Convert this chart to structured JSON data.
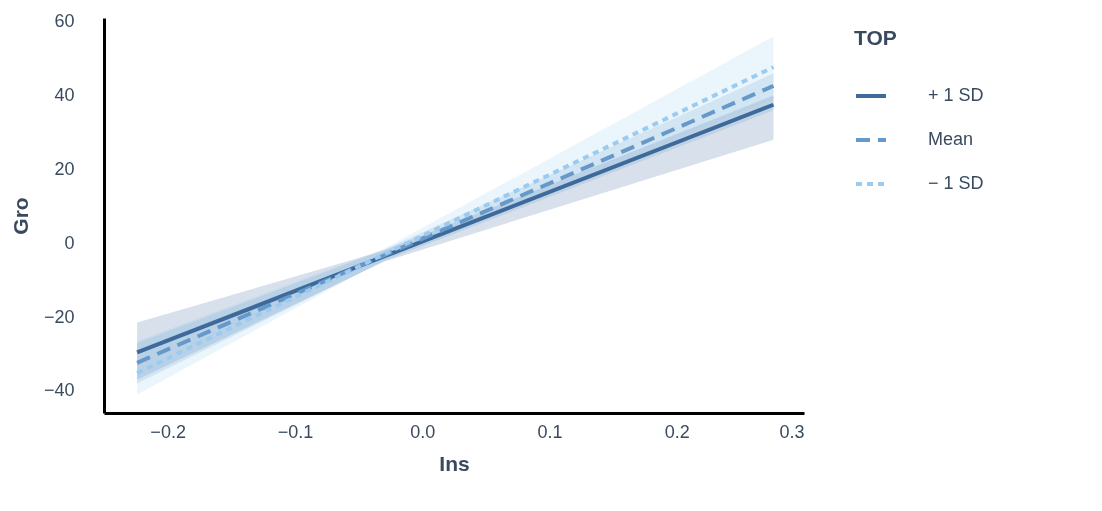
{
  "chart_data": {
    "type": "line",
    "xlabel": "Ins",
    "ylabel": "Gro",
    "legend_title": "TOP",
    "legend": "right",
    "grid": false,
    "marker": "none",
    "xlim": [
      -0.25,
      0.3
    ],
    "ylim": [
      -46,
      61
    ],
    "xticks": [
      {
        "value": -0.2,
        "label": "−0.2"
      },
      {
        "value": -0.1,
        "label": "−0.1"
      },
      {
        "value": 0,
        "label": "0.0"
      },
      0.1,
      0.2,
      0.3
    ],
    "yticks": [
      {
        "value": -40,
        "label": "−40"
      },
      {
        "value": -20,
        "label": "−20"
      },
      0,
      20,
      40,
      60
    ],
    "series": [
      {
        "name": "+ 1 SD",
        "color": "#3d6a9a",
        "line_style": "solid",
        "x": [
          -0.224,
          -0.03,
          0.276
        ],
        "values": [
          -29.6,
          -3.6,
          37.5
        ],
        "lower": [
          -37,
          -5,
          28
        ],
        "upper": [
          -21.5,
          -2,
          40
        ]
      },
      {
        "name": "Mean",
        "color": "#6699c9",
        "line_style": "dashed",
        "x": [
          -0.224,
          -0.03,
          0.276
        ],
        "values": [
          -32.4,
          -3.3,
          42.6
        ],
        "lower": [
          -38,
          -4.8,
          36
        ],
        "upper": [
          -27,
          -1.8,
          46
        ]
      },
      {
        "name": "− 1 SD",
        "color": "#9ccbf0",
        "line_style": "dotted",
        "x": [
          -0.224,
          -0.03,
          0.276
        ],
        "values": [
          -35.2,
          -3.0,
          47.7
        ],
        "lower": [
          -41,
          -4.5,
          39
        ],
        "upper": [
          -26.5,
          -1.5,
          56
        ]
      }
    ]
  }
}
